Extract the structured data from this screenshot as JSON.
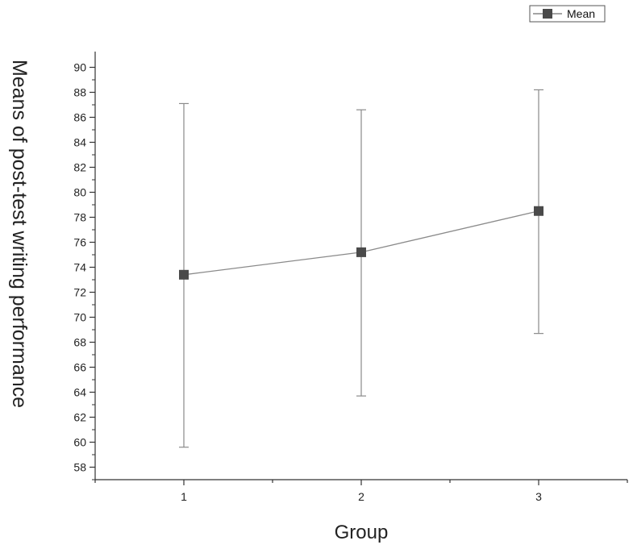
{
  "chart_data": {
    "type": "line",
    "title": "",
    "xlabel": "Group",
    "ylabel": "Means of post-test writing performance",
    "x": [
      1,
      2,
      3
    ],
    "xlim": [
      0.5,
      3.5
    ],
    "ylim": [
      57,
      91
    ],
    "yticks": [
      58,
      60,
      62,
      64,
      66,
      68,
      70,
      72,
      74,
      76,
      78,
      80,
      82,
      84,
      86,
      88,
      90
    ],
    "series": [
      {
        "name": "Mean",
        "values": [
          73.4,
          75.2,
          78.5
        ],
        "error_upper": [
          87.1,
          86.6,
          88.2
        ],
        "error_lower": [
          59.6,
          63.7,
          68.7
        ],
        "color": "#4a4a4a"
      }
    ],
    "legend_position": "top-right",
    "grid": false
  }
}
